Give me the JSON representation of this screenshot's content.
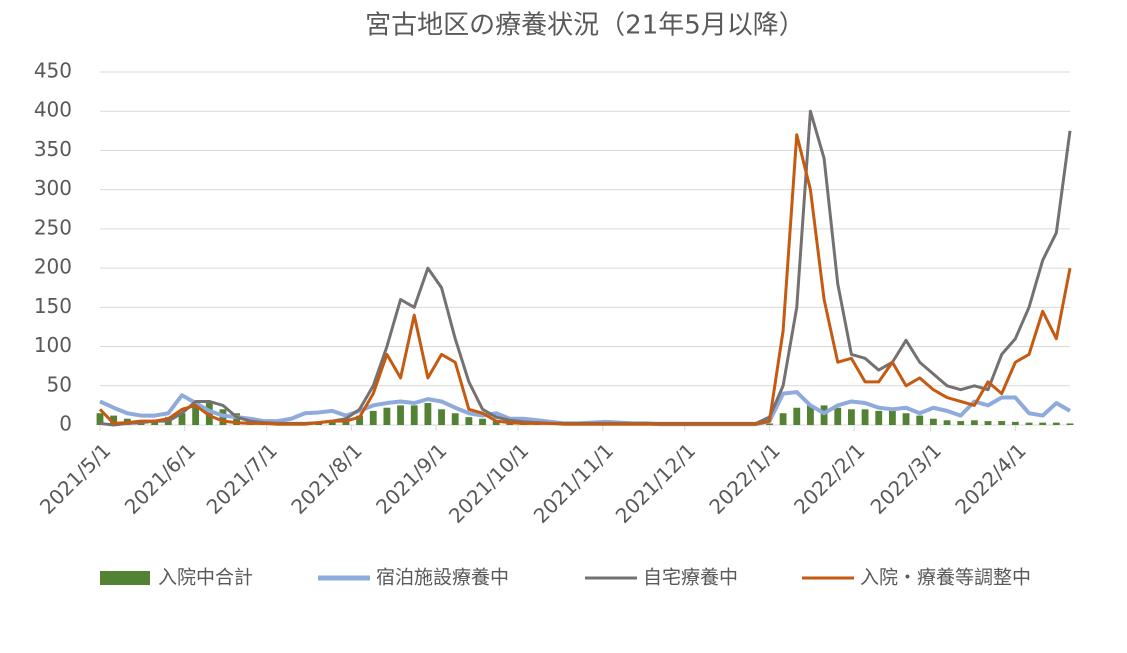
{
  "chart_data": {
    "type": "line",
    "title": "宮古地区の療養状況（21年5月以降）",
    "x": [
      "2021/5/1",
      "2021/5/6",
      "2021/5/11",
      "2021/5/16",
      "2021/5/21",
      "2021/5/26",
      "2021/5/31",
      "2021/6/5",
      "2021/6/10",
      "2021/6/15",
      "2021/6/20",
      "2021/6/25",
      "2021/6/30",
      "2021/7/5",
      "2021/7/10",
      "2021/7/15",
      "2021/7/20",
      "2021/7/25",
      "2021/7/30",
      "2021/8/4",
      "2021/8/9",
      "2021/8/14",
      "2021/8/19",
      "2021/8/24",
      "2021/8/29",
      "2021/9/3",
      "2021/9/8",
      "2021/9/13",
      "2021/9/18",
      "2021/9/23",
      "2021/9/28",
      "2021/10/3",
      "2021/10/8",
      "2021/10/13",
      "2021/10/18",
      "2021/10/23",
      "2021/10/28",
      "2021/11/2",
      "2021/11/7",
      "2021/11/12",
      "2021/11/17",
      "2021/11/22",
      "2021/11/27",
      "2021/12/2",
      "2021/12/7",
      "2021/12/12",
      "2021/12/17",
      "2021/12/22",
      "2021/12/27",
      "2022/1/1",
      "2022/1/6",
      "2022/1/11",
      "2022/1/16",
      "2022/1/21",
      "2022/1/26",
      "2022/1/31",
      "2022/2/5",
      "2022/2/10",
      "2022/2/15",
      "2022/2/20",
      "2022/2/25",
      "2022/3/2",
      "2022/3/7",
      "2022/3/12",
      "2022/3/17",
      "2022/3/22",
      "2022/3/27",
      "2022/4/1",
      "2022/4/6",
      "2022/4/11",
      "2022/4/16",
      "2022/4/21"
    ],
    "series": [
      {
        "name": "入院中合計",
        "type": "bar",
        "color": "#548235",
        "values": [
          15,
          12,
          8,
          5,
          5,
          10,
          15,
          25,
          28,
          20,
          15,
          10,
          5,
          3,
          3,
          2,
          3,
          5,
          8,
          12,
          18,
          22,
          25,
          25,
          28,
          20,
          15,
          10,
          8,
          5,
          4,
          3,
          2,
          1,
          1,
          0,
          0,
          0,
          0,
          0,
          0,
          0,
          0,
          0,
          0,
          0,
          0,
          0,
          0,
          2,
          15,
          22,
          25,
          25,
          22,
          20,
          20,
          18,
          18,
          15,
          12,
          8,
          6,
          5,
          6,
          5,
          5,
          4,
          3,
          3,
          3,
          2
        ]
      },
      {
        "name": "宿泊施設療養中",
        "type": "line",
        "color": "#8faadc",
        "values": [
          30,
          22,
          15,
          12,
          12,
          15,
          38,
          28,
          18,
          12,
          10,
          8,
          5,
          5,
          8,
          15,
          16,
          18,
          12,
          18,
          25,
          28,
          30,
          28,
          33,
          30,
          22,
          15,
          12,
          15,
          8,
          8,
          6,
          4,
          2,
          2,
          3,
          4,
          3,
          2,
          2,
          1,
          1,
          1,
          1,
          1,
          1,
          1,
          1,
          5,
          40,
          42,
          25,
          15,
          25,
          30,
          28,
          22,
          20,
          22,
          15,
          22,
          18,
          12,
          30,
          25,
          35,
          35,
          15,
          12,
          28,
          18
        ]
      },
      {
        "name": "自宅療養中",
        "type": "line",
        "color": "#767171",
        "values": [
          2,
          0,
          2,
          3,
          5,
          5,
          15,
          30,
          30,
          25,
          10,
          5,
          3,
          2,
          2,
          2,
          3,
          5,
          8,
          20,
          50,
          100,
          160,
          150,
          200,
          175,
          110,
          55,
          20,
          10,
          6,
          4,
          3,
          2,
          2,
          2,
          2,
          2,
          2,
          2,
          2,
          2,
          2,
          2,
          2,
          2,
          2,
          2,
          2,
          10,
          50,
          150,
          400,
          340,
          180,
          90,
          85,
          70,
          80,
          108,
          80,
          65,
          50,
          45,
          50,
          45,
          90,
          110,
          150,
          210,
          245,
          375
        ]
      },
      {
        "name": "入院・療養等調整中",
        "type": "line",
        "color": "#c55a11",
        "values": [
          20,
          2,
          3,
          5,
          5,
          8,
          20,
          25,
          12,
          5,
          3,
          2,
          2,
          1,
          1,
          1,
          3,
          5,
          5,
          10,
          40,
          90,
          60,
          140,
          60,
          90,
          80,
          20,
          15,
          5,
          3,
          2,
          2,
          2,
          1,
          1,
          1,
          1,
          1,
          1,
          1,
          1,
          1,
          1,
          1,
          1,
          1,
          1,
          1,
          5,
          120,
          370,
          300,
          160,
          80,
          85,
          55,
          55,
          80,
          50,
          60,
          45,
          35,
          30,
          25,
          55,
          40,
          80,
          90,
          145,
          110,
          200
        ]
      }
    ],
    "xlim": [
      "2021/5/1",
      "2022/4/21"
    ],
    "xticks": [
      "2021/5/1",
      "2021/6/1",
      "2021/7/1",
      "2021/8/1",
      "2021/9/1",
      "2021/10/1",
      "2021/11/1",
      "2021/12/1",
      "2022/1/1",
      "2022/2/1",
      "2022/3/1",
      "2022/4/1"
    ],
    "ylim": [
      0,
      450
    ],
    "yticks": [
      0,
      50,
      100,
      150,
      200,
      250,
      300,
      350,
      400,
      450
    ],
    "grid": true,
    "legend": "bottom"
  }
}
